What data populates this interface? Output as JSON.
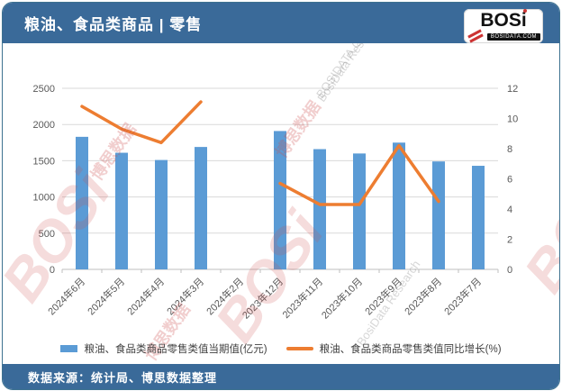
{
  "header": {
    "title": "粮油、食品类商品 | 零售",
    "logo": {
      "brand": "BOS",
      "brand_i": "i",
      "domain": "BOSIDATA.COM"
    }
  },
  "chart_data": {
    "type": "bar",
    "subtype": "combo-bar-line",
    "categories": [
      "2024年6月",
      "2024年5月",
      "2024年4月",
      "2024年3月",
      "2024年2月",
      "2023年12月",
      "2023年11月",
      "2023年10月",
      "2023年9月",
      "2023年8月",
      "2023年7月"
    ],
    "series": [
      {
        "name": "粮油、食品类商品零售类值当期值(亿元)",
        "type": "bar",
        "axis": "left",
        "color": "#5B9BD5",
        "values": [
          1830,
          1610,
          1510,
          1690,
          null,
          1910,
          1660,
          1600,
          1750,
          1490,
          1430
        ]
      },
      {
        "name": "粮油、食品类商品零售类值同比增长(%)",
        "type": "line",
        "axis": "right",
        "color": "#ED7D31",
        "values": [
          10.8,
          9.3,
          8.4,
          11.1,
          null,
          5.7,
          4.3,
          4.3,
          8.2,
          4.5,
          null
        ]
      }
    ],
    "left_axis": {
      "min": 0,
      "max": 2500,
      "step": 500
    },
    "right_axis": {
      "min": 0,
      "max": 12,
      "step": 2
    },
    "grid": true,
    "legend_position": "bottom",
    "x_label_rotation": -45
  },
  "footer": {
    "source": "数据来源：统计局、博思数据整理"
  },
  "watermark": {
    "brand": "BOSi",
    "cn": "博思数据",
    "en": "BosiData Research",
    "domain": "BOSIDATA.COM"
  },
  "colors": {
    "header_bg": "#3A6A99",
    "bar": "#5B9BD5",
    "line": "#ED7D31",
    "grid": "#D9D9D9",
    "axis_text": "#595959",
    "logo_red": "#CC3333"
  }
}
